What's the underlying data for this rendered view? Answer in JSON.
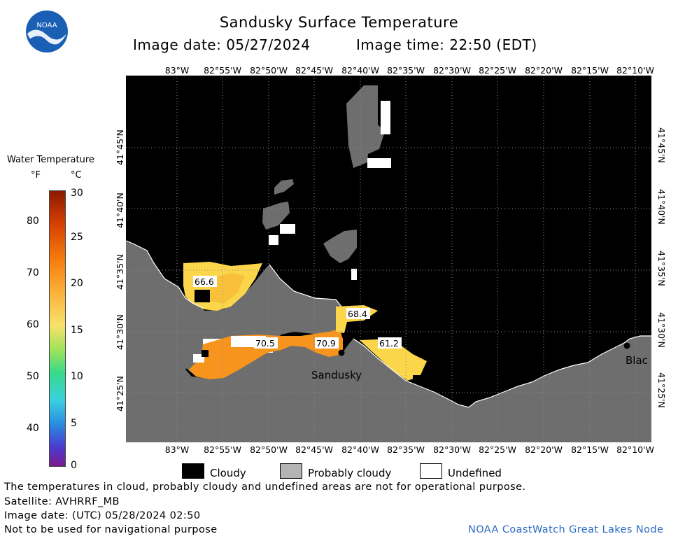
{
  "header": {
    "title": "Sandusky Surface Temperature",
    "image_date_label": "Image date: 05/27/2024",
    "image_time_label": "Image time: 22:50 (EDT)"
  },
  "logo": {
    "text": "NOAA"
  },
  "colorbar": {
    "title": "Water Temperature",
    "unit_f": "°F",
    "unit_c": "°C",
    "f_ticks": [
      "80",
      "70",
      "60",
      "50",
      "40"
    ],
    "c_ticks": [
      "30",
      "25",
      "20",
      "15",
      "10",
      "5",
      "0"
    ]
  },
  "axes": {
    "lon_labels": [
      "83°W",
      "82°55'W",
      "82°50'W",
      "82°45'W",
      "82°40'W",
      "82°35'W",
      "82°30'W",
      "82°25'W",
      "82°20'W",
      "82°15'W",
      "82°10'W"
    ],
    "lat_labels": [
      "41°45'N",
      "41°40'N",
      "41°35'N",
      "41°30'N",
      "41°25'N"
    ]
  },
  "map": {
    "temp_labels": [
      "66.6",
      "68.4",
      "70.5",
      "70.9",
      "61.2"
    ],
    "place_labels": [
      "Sandusky",
      "Blac"
    ]
  },
  "legend": {
    "cloudy": "Cloudy",
    "probably_cloudy": "Probably cloudy",
    "undefined": "Undefined"
  },
  "footer": {
    "disclaimer": "The temperatures in cloud, probably cloudy and undefined areas are not for operational purpose.",
    "satellite": "Satellite: AVHRRF_MB",
    "utc_date": "Image date: (UTC) 05/28/2024  02:50",
    "nav_warning": "Not to be used for navigational purpose",
    "credit": "NOAA CoastWatch Great Lakes Node"
  },
  "colors": {
    "cloudy": "#000000",
    "probably_cloudy": "#6e6e6e",
    "undefined": "#ffffff",
    "warm_water": "#f7941d",
    "mild_water": "#fbd64a"
  }
}
